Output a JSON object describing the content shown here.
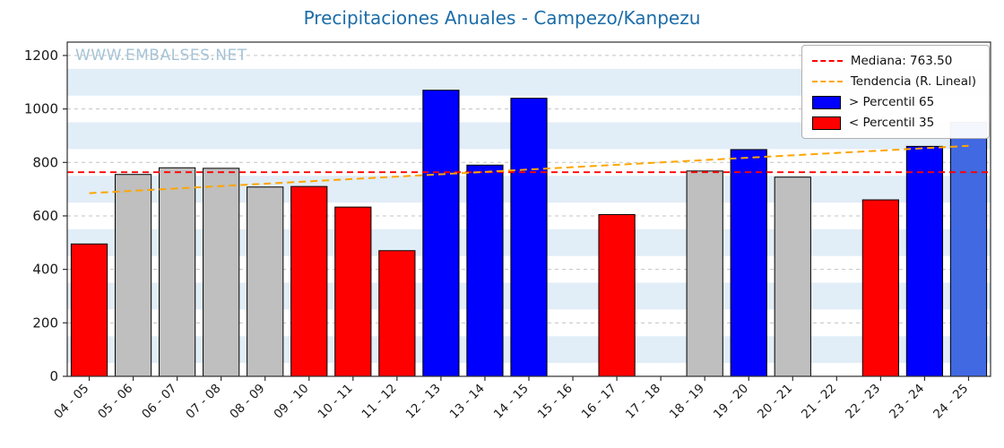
{
  "title": "Precipitaciones Anuales - Campezo/Kanpezu",
  "watermark": "WWW.EMBALSES.NET",
  "colors": {
    "title": "#1b6ca8",
    "watermark": "#a5c3d6",
    "band": "#e1edf7",
    "grid": "#c3c3c3",
    "axis": "#2f2f2f",
    "median_line": "#ff0000",
    "trend_line": "#ffa500",
    "bar_above_p65": "#0000ff",
    "bar_below_p35": "#ff0000",
    "bar_mid": "#bfbfbf",
    "bar_partial": "#4169e1"
  },
  "chart_data": {
    "type": "bar",
    "title": "Precipitaciones Anuales - Campezo/Kanpezu",
    "xlabel": "",
    "ylabel": "",
    "ylim": [
      0,
      1250
    ],
    "yticks": [
      0,
      200,
      400,
      600,
      800,
      1000,
      1200
    ],
    "grid": true,
    "legend_position": "upper right",
    "categories": [
      "04 - 05",
      "05 - 06",
      "06 - 07",
      "07 - 08",
      "08 - 09",
      "09 - 10",
      "10 - 11",
      "11 - 12",
      "12 - 13",
      "13 - 14",
      "14 - 15",
      "15 - 16",
      "16 - 17",
      "17 - 18",
      "18 - 19",
      "19 - 20",
      "20 - 21",
      "21 - 22",
      "22 - 23",
      "23 - 24",
      "24 - 25"
    ],
    "series": [
      {
        "name": "Precipitación anual",
        "values": [
          495,
          755,
          780,
          778,
          708,
          710,
          633,
          470,
          1070,
          790,
          1040,
          null,
          605,
          null,
          768,
          848,
          745,
          null,
          660,
          860,
          950
        ]
      }
    ],
    "bar_colors": [
      "#ff0000",
      "#bfbfbf",
      "#bfbfbf",
      "#bfbfbf",
      "#bfbfbf",
      "#ff0000",
      "#ff0000",
      "#ff0000",
      "#0000ff",
      "#0000ff",
      "#0000ff",
      null,
      "#ff0000",
      null,
      "#bfbfbf",
      "#0000ff",
      "#bfbfbf",
      null,
      "#ff0000",
      "#0000ff",
      "#4169e1"
    ],
    "median": {
      "value": 763.5
    },
    "trend": {
      "start": 685,
      "end": 862
    },
    "legend": [
      {
        "label": "Mediana: 763.50",
        "type": "dashed-line",
        "color": "#ff0000"
      },
      {
        "label": "Tendencia (R. Lineal)",
        "type": "dashed-line",
        "color": "#ffa500"
      },
      {
        "label": "> Percentil 65",
        "type": "patch",
        "color": "#0000ff"
      },
      {
        "label": "< Percentil 35",
        "type": "patch",
        "color": "#ff0000"
      }
    ]
  }
}
